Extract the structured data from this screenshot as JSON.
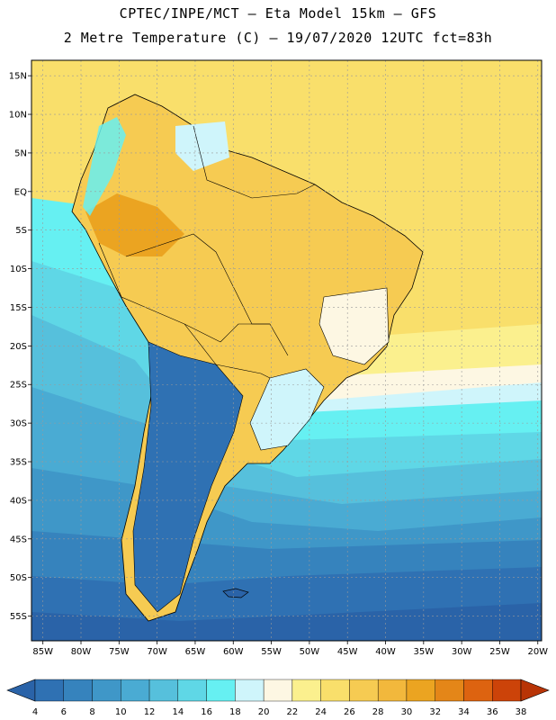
{
  "header": {
    "line1": "CPTEC/INPE/MCT –  Eta Model 15km – GFS",
    "line2": "2 Metre Temperature (C) – 19/07/2020 12UTC fct=83h"
  },
  "axes": {
    "lat_labels": [
      "15N",
      "10N",
      "5N",
      "EQ",
      "5S",
      "10S",
      "15S",
      "20S",
      "25S",
      "30S",
      "35S",
      "40S",
      "45S",
      "50S",
      "55S"
    ],
    "lon_labels": [
      "85W",
      "80W",
      "75W",
      "70W",
      "65W",
      "60W",
      "55W",
      "50W",
      "45W",
      "40W",
      "35W",
      "30W",
      "25W",
      "20W"
    ]
  },
  "colorbar": {
    "labels": [
      "4",
      "6",
      "8",
      "10",
      "12",
      "14",
      "16",
      "18",
      "20",
      "22",
      "24",
      "26",
      "28",
      "30",
      "32",
      "34",
      "36",
      "38"
    ],
    "colors": [
      "#2a63a8",
      "#2f71b3",
      "#3683bd",
      "#3f97c8",
      "#4aabd3",
      "#56c0dc",
      "#5fd7e6",
      "#66f0f2",
      "#cff5fb",
      "#fdf7e3",
      "#fbf08e",
      "#f9df6b",
      "#f6cb52",
      "#f2b83c",
      "#eba421",
      "#e48618",
      "#dd6310",
      "#cc4309",
      "#b83406"
    ]
  },
  "colors": {
    "ocean_cold": "#2a63a8",
    "ocean_mid": "#3f97c8",
    "ocean_light": "#56c0dc",
    "ocean_cyan": "#66f0f2",
    "warm_ocean": "#f9df6b",
    "land_hot": "#f6cb52",
    "land_very_hot": "#eba421"
  }
}
